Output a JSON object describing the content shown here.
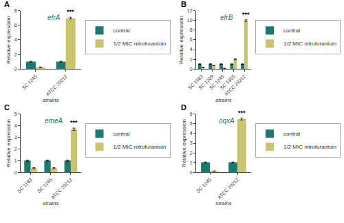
{
  "chart_data": [
    {
      "type": "bar",
      "title": "A",
      "annotations": [
        {
          "text": "efrA"
        },
        {
          "text": "***",
          "x": "ATCC 29212",
          "series": "1/2 MIC nitrofurantoin"
        }
      ],
      "xlabel": "strains",
      "ylabel": "Relative expression",
      "categories": [
        "SC 1245",
        "ATCC 29212"
      ],
      "series": [
        {
          "name": "contral",
          "color": "#1a7a6e",
          "values": [
            1.0,
            1.0
          ],
          "errors": [
            0.05,
            0.05
          ]
        },
        {
          "name": "1/2 MIC nitrofurantoin",
          "color": "#c9c46e",
          "values": [
            0.22,
            7.0
          ],
          "errors": [
            0.05,
            0.12
          ]
        }
      ],
      "ylim": [
        0,
        8
      ],
      "yticks": [
        0,
        2,
        4,
        6,
        8
      ],
      "grid": false,
      "legend": "right"
    },
    {
      "type": "bar",
      "title": "B",
      "annotations": [
        {
          "text": "efrB"
        },
        {
          "text": "***",
          "x": "ATCC 29212",
          "series": "1/2 MIC nitrofurantoin"
        }
      ],
      "xlabel": "strains",
      "ylabel": "Relative expression",
      "categories": [
        "SC 1183",
        "SC 1209",
        "SC 1245",
        "SC 1355",
        "ATCC 29212"
      ],
      "series": [
        {
          "name": "contral",
          "color": "#1a7a6e",
          "values": [
            1.0,
            1.0,
            1.0,
            1.0,
            1.0
          ],
          "errors": [
            0.05,
            0.05,
            0.05,
            0.05,
            0.05
          ]
        },
        {
          "name": "1/2 MIC nitrofurantoin",
          "color": "#c9c46e",
          "values": [
            0.3,
            0.7,
            0.1,
            2.0,
            10.0
          ],
          "errors": [
            0.05,
            0.05,
            0.05,
            0.1,
            0.15
          ]
        }
      ],
      "ylim": [
        0,
        12
      ],
      "yticks": [
        0,
        2,
        4,
        6,
        8,
        10,
        12
      ],
      "grid": false,
      "legend": "right"
    },
    {
      "type": "bar",
      "title": "C",
      "annotations": [
        {
          "text": "emeA"
        },
        {
          "text": "***",
          "x": "ATCC 29212",
          "series": "1/2 MIC nitrofurantoin"
        }
      ],
      "xlabel": "strains",
      "ylabel": "Relative expression",
      "categories": [
        "SC 1183",
        "SC 1245",
        "ATCC 29212"
      ],
      "series": [
        {
          "name": "contral",
          "color": "#1a7a6e",
          "values": [
            1.0,
            1.0,
            1.0
          ],
          "errors": [
            0.05,
            0.05,
            0.05
          ]
        },
        {
          "name": "1/2 MIC nitrofurantoin",
          "color": "#c9c46e",
          "values": [
            0.35,
            0.35,
            3.7
          ],
          "errors": [
            0.04,
            0.04,
            0.1
          ]
        }
      ],
      "ylim": [
        0,
        5
      ],
      "yticks": [
        0,
        1,
        2,
        3,
        4,
        5
      ],
      "grid": false,
      "legend": "right"
    },
    {
      "type": "bar",
      "title": "D",
      "annotations": [
        {
          "text": "oqxA"
        },
        {
          "text": "***",
          "x": "ATCC 29212",
          "series": "1/2 MIC nitrofurantoin"
        }
      ],
      "xlabel": "strains",
      "ylabel": "Relative expression",
      "categories": [
        "SC 1245",
        "ATCC 29212"
      ],
      "series": [
        {
          "name": "contral",
          "color": "#1a7a6e",
          "values": [
            1.0,
            1.0
          ],
          "errors": [
            0.05,
            0.05
          ]
        },
        {
          "name": "1/2 MIC nitrofurantoin",
          "color": "#c9c46e",
          "values": [
            0.12,
            5.5
          ],
          "errors": [
            0.02,
            0.1
          ]
        }
      ],
      "ylim": [
        0,
        6
      ],
      "yticks": [
        0,
        1,
        2,
        3,
        4,
        5,
        6
      ],
      "grid": false,
      "legend": "right"
    }
  ]
}
